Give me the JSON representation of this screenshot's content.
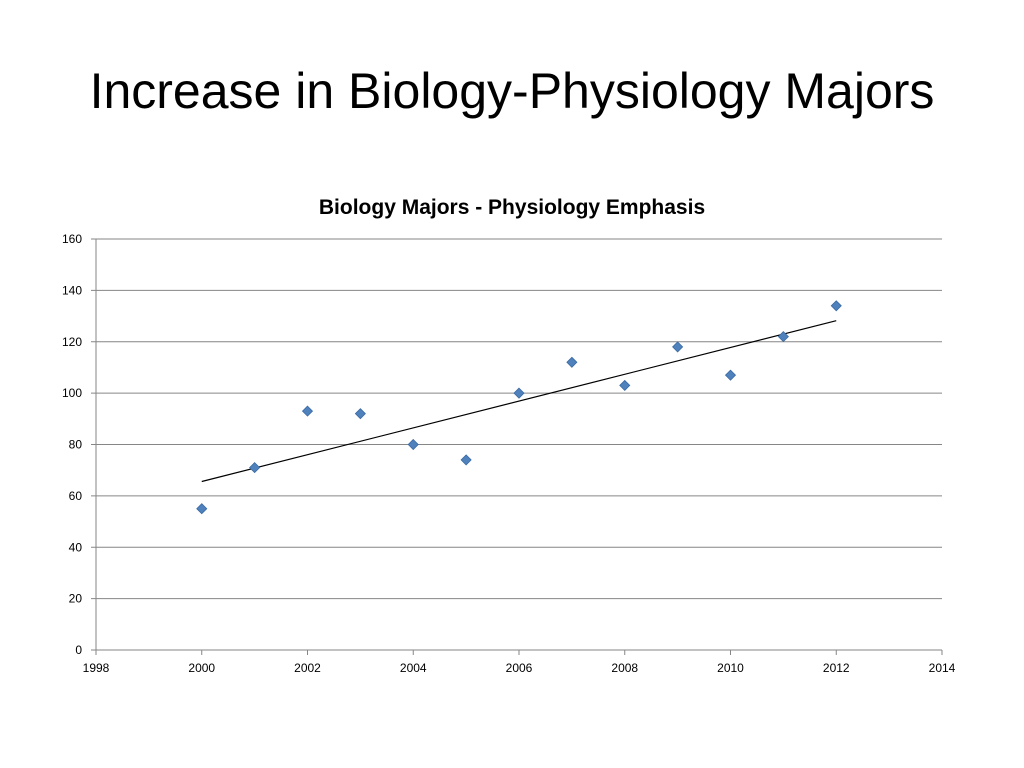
{
  "slide": {
    "title": "Increase in Biology-Physiology Majors"
  },
  "colors": {
    "marker": "#4f81bd",
    "marker_stroke": "#3a6aa3",
    "trendline": "#000000",
    "gridline": "#868686",
    "axis": "#868686"
  },
  "chart_data": {
    "type": "scatter",
    "title": "Biology Majors - Physiology Emphasis",
    "xlabel": "",
    "ylabel": "",
    "xlim": [
      1998,
      2014
    ],
    "ylim": [
      0,
      160
    ],
    "x_ticks": [
      1998,
      2000,
      2002,
      2004,
      2006,
      2008,
      2010,
      2012,
      2014
    ],
    "y_ticks": [
      0,
      20,
      40,
      60,
      80,
      100,
      120,
      140,
      160
    ],
    "grid": "horizontal",
    "legend": "none",
    "marker": "diamond",
    "series": [
      {
        "x": [
          2000,
          2001,
          2002,
          2003,
          2004,
          2005,
          2006,
          2007,
          2008,
          2009,
          2010,
          2011,
          2012
        ],
        "y": [
          55,
          71,
          93,
          92,
          80,
          74,
          100,
          112,
          103,
          118,
          107,
          122,
          134
        ]
      }
    ],
    "trendline": {
      "type": "linear",
      "x": [
        2000,
        2012
      ],
      "y": [
        65.6,
        128.2
      ]
    }
  }
}
